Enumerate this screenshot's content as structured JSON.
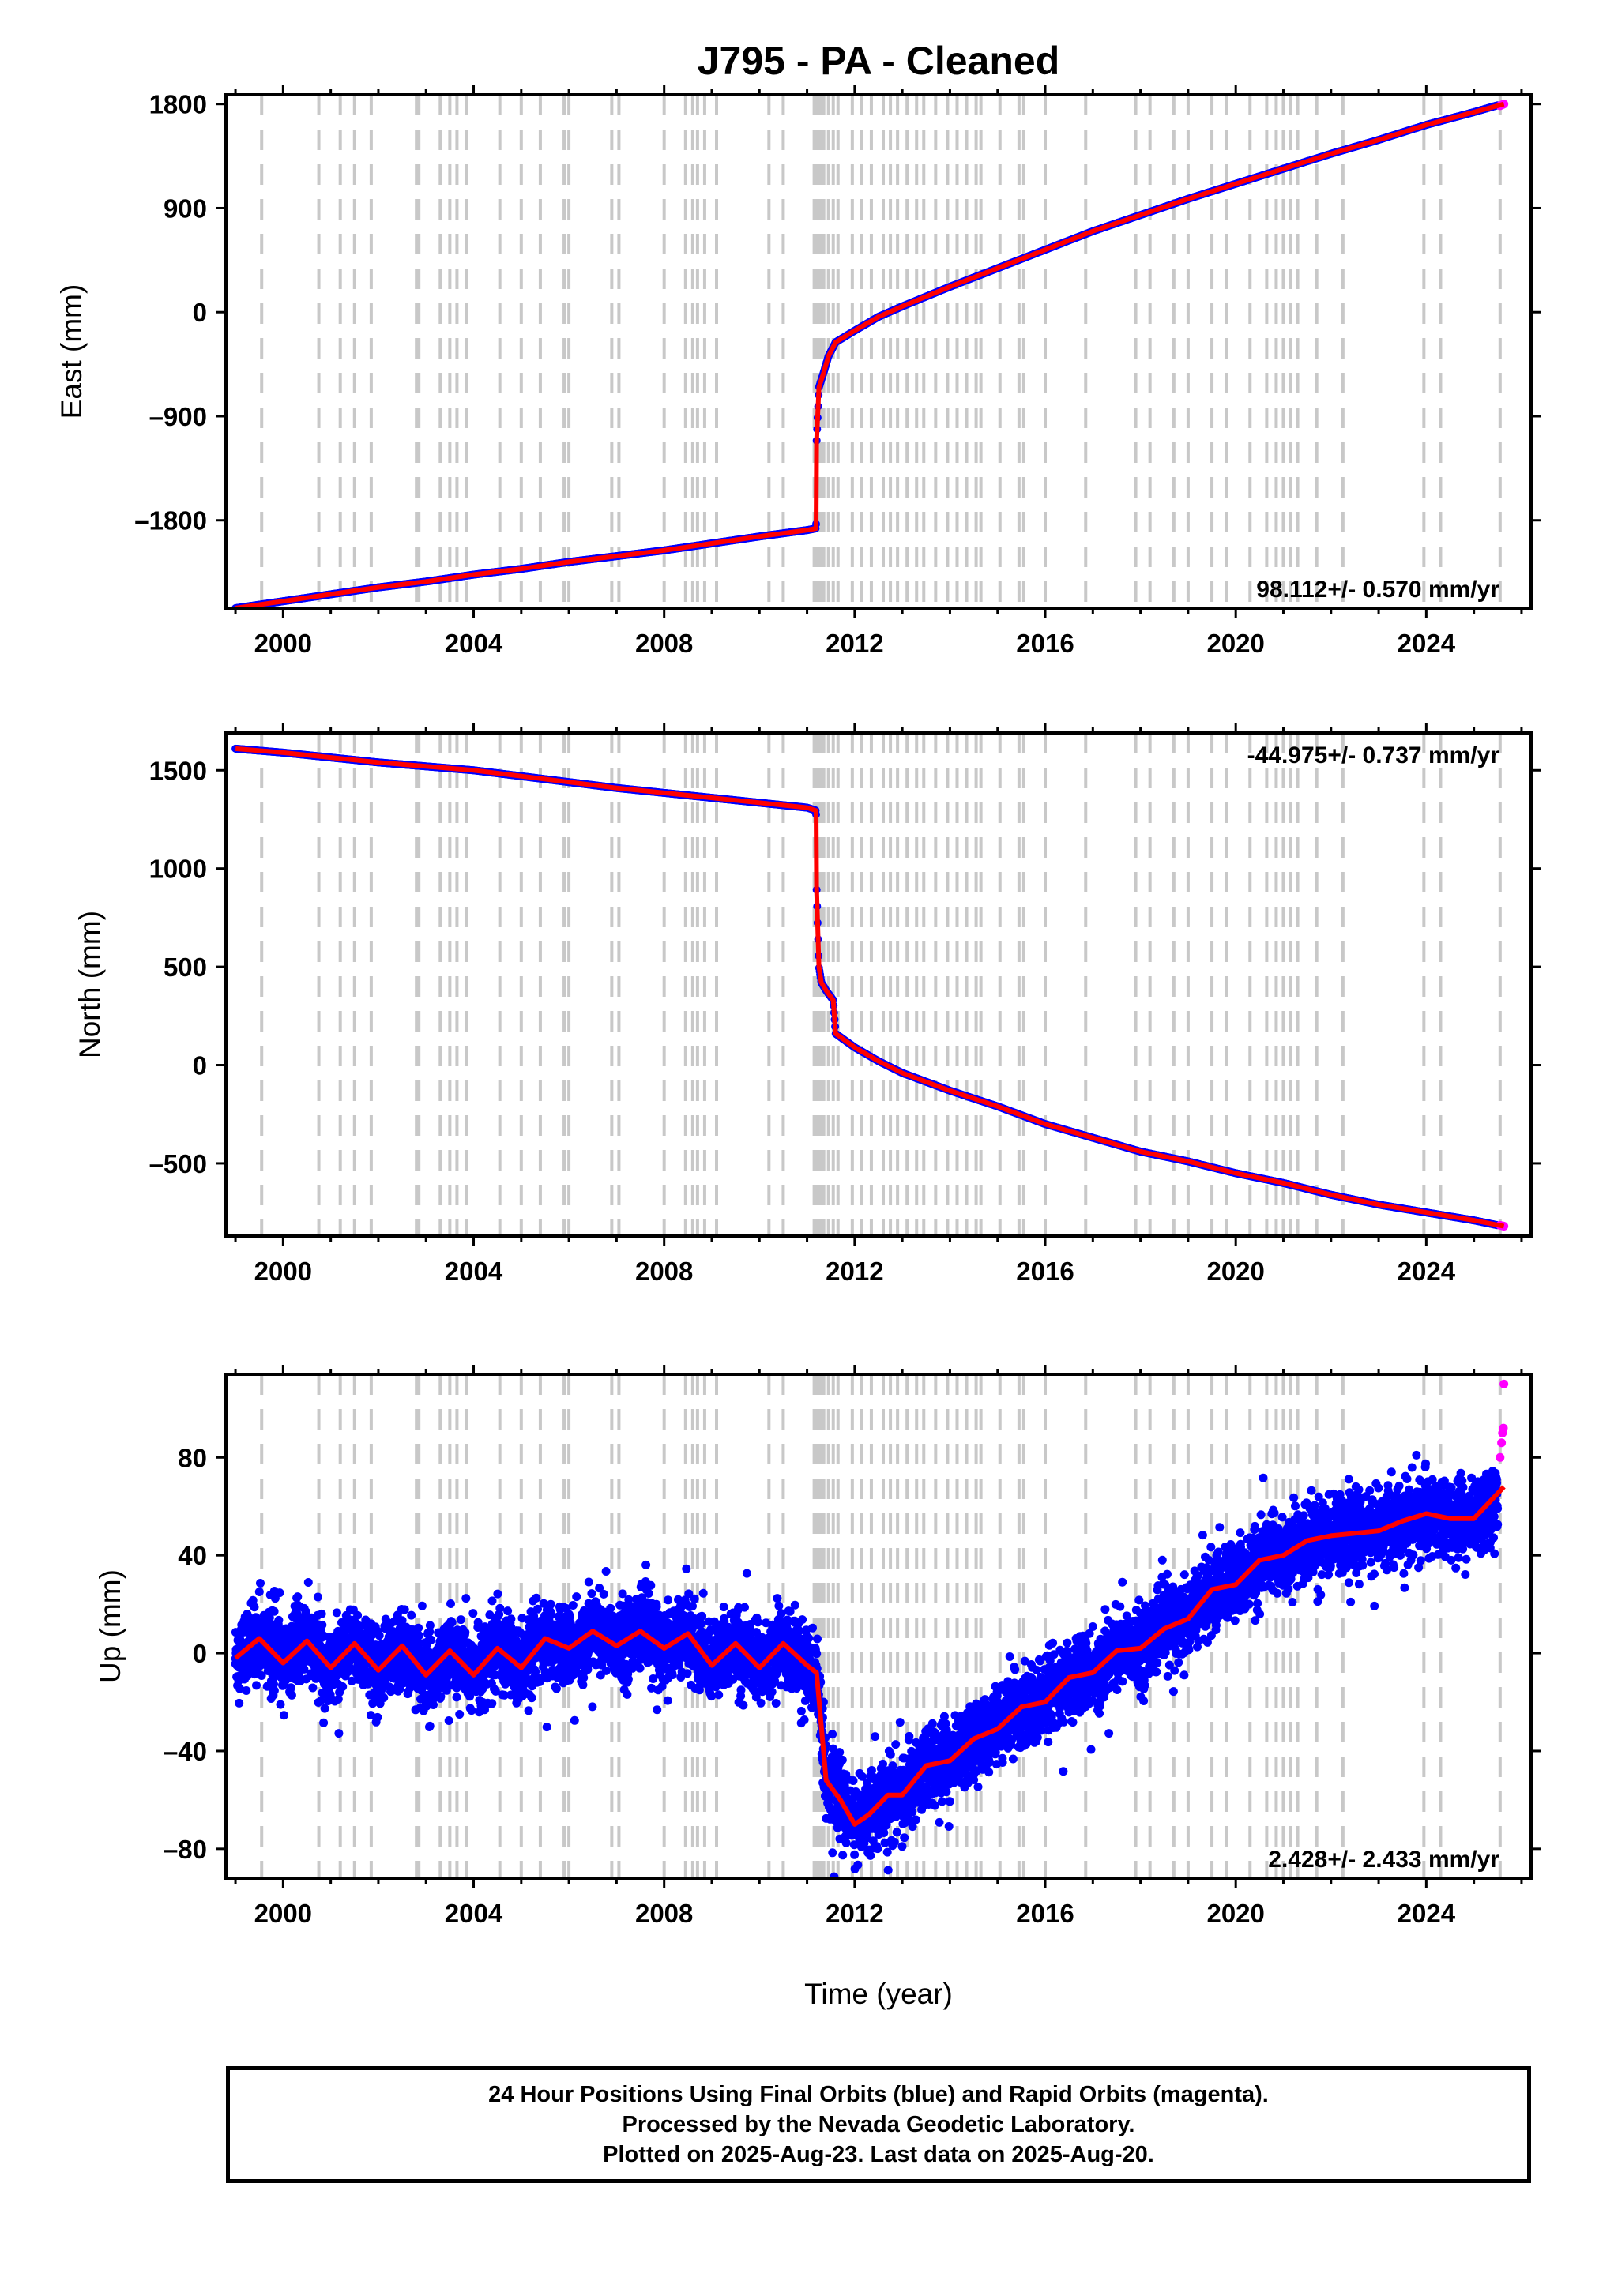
{
  "figure": {
    "title": "J795  - PA - Cleaned",
    "xlabel": "Time (year)",
    "footer": [
      "24 Hour Positions Using Final Orbits (blue) and Rapid Orbits (magenta).",
      "Processed by the Nevada Geodetic Laboratory.",
      "Plotted on 2025-Aug-23. Last data on 2025-Aug-20."
    ],
    "colors": {
      "final_orbits": "#0000ff",
      "rapid_orbits": "#ff00ff",
      "model": "#ff0000",
      "equipment_change": "#c8c8c8",
      "frame": "#000000"
    }
  },
  "chart_data": [
    {
      "type": "scatter",
      "panel": "east",
      "ylabel": "East (mm)",
      "xlim": [
        1998.8,
        2026.2
      ],
      "ylim": [
        -2560,
        1880
      ],
      "xticks": [
        2000,
        2004,
        2008,
        2012,
        2016,
        2020,
        2024
      ],
      "yticks": [
        1800,
        900,
        0,
        -900,
        -1800
      ],
      "ytick_labels": [
        "1800",
        "900",
        "0",
        "–900",
        "–1800"
      ],
      "rate_label": "98.112+/- 0.570 mm/yr",
      "series": [
        {
          "name": "Final Orbits (blue)",
          "color": "#0000ff",
          "x": [
            1999.0,
            2000.0,
            2001.0,
            2002.0,
            2003.0,
            2004.0,
            2005.0,
            2006.0,
            2007.0,
            2008.0,
            2009.0,
            2010.0,
            2011.0,
            2011.19,
            2011.2,
            2011.25,
            2011.35,
            2011.45,
            2011.6,
            2012.0,
            2012.5,
            2013.0,
            2014.0,
            2015.0,
            2016.0,
            2017.0,
            2018.0,
            2019.0,
            2020.0,
            2021.0,
            2022.0,
            2023.0,
            2024.0,
            2025.0,
            2025.5
          ],
          "y": [
            -2560,
            -2500,
            -2440,
            -2380,
            -2330,
            -2270,
            -2220,
            -2160,
            -2110,
            -2060,
            -2000,
            -1940,
            -1885,
            -1870,
            -1120,
            -650,
            -520,
            -380,
            -260,
            -160,
            -40,
            50,
            220,
            380,
            540,
            700,
            840,
            980,
            1110,
            1240,
            1370,
            1490,
            1620,
            1730,
            1790
          ]
        },
        {
          "name": "Rapid Orbits (magenta)",
          "color": "#ff00ff",
          "x": [
            2025.55,
            2025.6,
            2025.63
          ],
          "y": [
            1785,
            1795,
            1800
          ]
        }
      ],
      "model": {
        "color": "#ff0000",
        "x": [
          1999.0,
          2000.0,
          2001.0,
          2002.0,
          2003.0,
          2004.0,
          2005.0,
          2006.0,
          2007.0,
          2008.0,
          2009.0,
          2010.0,
          2011.0,
          2011.19,
          2011.2,
          2011.25,
          2011.35,
          2011.45,
          2011.6,
          2012.0,
          2012.5,
          2013.0,
          2014.0,
          2015.0,
          2016.0,
          2017.0,
          2018.0,
          2019.0,
          2020.0,
          2021.0,
          2022.0,
          2023.0,
          2024.0,
          2025.0,
          2025.63
        ],
        "y": [
          -2560,
          -2500,
          -2440,
          -2380,
          -2330,
          -2270,
          -2220,
          -2160,
          -2110,
          -2060,
          -2000,
          -1940,
          -1885,
          -1870,
          -1120,
          -650,
          -520,
          -380,
          -260,
          -160,
          -40,
          50,
          220,
          380,
          540,
          700,
          840,
          980,
          1110,
          1240,
          1370,
          1490,
          1620,
          1730,
          1800
        ]
      }
    },
    {
      "type": "scatter",
      "panel": "north",
      "ylabel": "North (mm)",
      "xlim": [
        1998.8,
        2026.2
      ],
      "ylim": [
        -870,
        1690
      ],
      "xticks": [
        2000,
        2004,
        2008,
        2012,
        2016,
        2020,
        2024
      ],
      "yticks": [
        1500,
        1000,
        500,
        0,
        -500
      ],
      "ytick_labels": [
        "1500",
        "1000",
        "500",
        "0",
        "–500"
      ],
      "rate_label": "-44.975+/- 0.737 mm/yr",
      "series": [
        {
          "name": "Final Orbits (blue)",
          "color": "#0000ff",
          "x": [
            1999.0,
            2000.0,
            2001.0,
            2002.0,
            2003.0,
            2004.0,
            2005.0,
            2006.0,
            2007.0,
            2008.0,
            2009.0,
            2010.0,
            2011.0,
            2011.19,
            2011.2,
            2011.25,
            2011.3,
            2011.4,
            2011.55,
            2011.6,
            2012.0,
            2012.5,
            2013.0,
            2014.0,
            2015.0,
            2016.0,
            2017.0,
            2018.0,
            2019.0,
            2020.0,
            2021.0,
            2022.0,
            2023.0,
            2024.0,
            2025.0,
            2025.5
          ],
          "y": [
            1610,
            1590,
            1565,
            1540,
            1520,
            1500,
            1470,
            1440,
            1410,
            1385,
            1360,
            1335,
            1310,
            1295,
            900,
            500,
            420,
            380,
            330,
            160,
            90,
            20,
            -40,
            -130,
            -210,
            -300,
            -370,
            -440,
            -490,
            -550,
            -600,
            -660,
            -710,
            -750,
            -790,
            -815
          ]
        },
        {
          "name": "Rapid Orbits (magenta)",
          "color": "#ff00ff",
          "x": [
            2025.55,
            2025.6,
            2025.63
          ],
          "y": [
            -815,
            -818,
            -820
          ]
        }
      ],
      "model": {
        "color": "#ff0000",
        "x": [
          1999.0,
          2000.0,
          2001.0,
          2002.0,
          2003.0,
          2004.0,
          2005.0,
          2006.0,
          2007.0,
          2008.0,
          2009.0,
          2010.0,
          2011.0,
          2011.19,
          2011.2,
          2011.25,
          2011.3,
          2011.4,
          2011.55,
          2011.6,
          2012.0,
          2012.5,
          2013.0,
          2014.0,
          2015.0,
          2016.0,
          2017.0,
          2018.0,
          2019.0,
          2020.0,
          2021.0,
          2022.0,
          2023.0,
          2024.0,
          2025.0,
          2025.63
        ],
        "y": [
          1610,
          1590,
          1565,
          1540,
          1520,
          1500,
          1470,
          1440,
          1410,
          1385,
          1360,
          1335,
          1310,
          1295,
          900,
          500,
          420,
          380,
          330,
          160,
          90,
          20,
          -40,
          -130,
          -210,
          -300,
          -370,
          -440,
          -490,
          -550,
          -600,
          -660,
          -710,
          -750,
          -790,
          -820
        ]
      }
    },
    {
      "type": "scatter",
      "panel": "up",
      "ylabel": "Up (mm)",
      "xlim": [
        1998.8,
        2026.2
      ],
      "ylim": [
        -92,
        114
      ],
      "xticks": [
        2000,
        2004,
        2008,
        2012,
        2016,
        2020,
        2024
      ],
      "yticks": [
        80,
        40,
        0,
        -40,
        -80
      ],
      "ytick_labels": [
        "80",
        "40",
        "0",
        "–40",
        "–80"
      ],
      "rate_label": "2.428+/- 2.433 mm/yr",
      "series": [
        {
          "name": "Final Orbits (blue)",
          "color": "#0000ff",
          "x": [
            1999.0,
            1999.5,
            2000.0,
            2000.5,
            2001.0,
            2001.5,
            2002.0,
            2002.5,
            2003.0,
            2003.5,
            2004.0,
            2004.5,
            2005.0,
            2005.5,
            2006.0,
            2006.5,
            2007.0,
            2007.5,
            2008.0,
            2008.5,
            2009.0,
            2009.5,
            2010.0,
            2010.5,
            2011.0,
            2011.2,
            2011.4,
            2011.7,
            2012.0,
            2012.3,
            2012.7,
            2013.0,
            2013.5,
            2014.0,
            2014.5,
            2015.0,
            2015.5,
            2016.0,
            2016.5,
            2017.0,
            2017.5,
            2018.0,
            2018.5,
            2019.0,
            2019.5,
            2020.0,
            2020.5,
            2021.0,
            2021.5,
            2022.0,
            2022.5,
            2023.0,
            2023.5,
            2024.0,
            2024.5,
            2025.0,
            2025.5
          ],
          "y": [
            -2,
            6,
            -4,
            5,
            -6,
            4,
            -7,
            3,
            -9,
            1,
            -9,
            2,
            -6,
            6,
            2,
            9,
            3,
            9,
            2,
            8,
            -5,
            4,
            -6,
            4,
            -5,
            -8,
            -52,
            -60,
            -70,
            -66,
            -58,
            -58,
            -46,
            -44,
            -35,
            -31,
            -22,
            -20,
            -10,
            -8,
            1,
            2,
            10,
            14,
            26,
            28,
            38,
            40,
            46,
            48,
            49,
            50,
            54,
            57,
            55,
            55,
            62
          ]
        },
        {
          "name": "Rapid Orbits (magenta)",
          "color": "#ff00ff",
          "x": [
            2025.55,
            2025.58,
            2025.6,
            2025.62,
            2025.63
          ],
          "y": [
            80,
            86,
            90,
            92,
            110
          ]
        }
      ],
      "model": {
        "color": "#ff0000",
        "x": [
          1999.0,
          1999.5,
          2000.0,
          2000.5,
          2001.0,
          2001.5,
          2002.0,
          2002.5,
          2003.0,
          2003.5,
          2004.0,
          2004.5,
          2005.0,
          2005.5,
          2006.0,
          2006.5,
          2007.0,
          2007.5,
          2008.0,
          2008.5,
          2009.0,
          2009.5,
          2010.0,
          2010.5,
          2011.0,
          2011.2,
          2011.4,
          2011.7,
          2012.0,
          2012.3,
          2012.7,
          2013.0,
          2013.5,
          2014.0,
          2014.5,
          2015.0,
          2015.5,
          2016.0,
          2016.5,
          2017.0,
          2017.5,
          2018.0,
          2018.5,
          2019.0,
          2019.5,
          2020.0,
          2020.5,
          2021.0,
          2021.5,
          2022.0,
          2022.5,
          2023.0,
          2023.5,
          2024.0,
          2024.5,
          2025.0,
          2025.63
        ],
        "y": [
          -2,
          6,
          -4,
          5,
          -6,
          4,
          -7,
          3,
          -9,
          1,
          -9,
          2,
          -6,
          6,
          2,
          9,
          3,
          9,
          2,
          8,
          -5,
          4,
          -6,
          4,
          -5,
          -8,
          -52,
          -60,
          -70,
          -66,
          -58,
          -58,
          -46,
          -44,
          -35,
          -31,
          -22,
          -20,
          -10,
          -8,
          1,
          2,
          10,
          14,
          26,
          28,
          38,
          40,
          46,
          48,
          49,
          50,
          54,
          57,
          55,
          55,
          68
        ]
      }
    }
  ],
  "equipment_changes": [
    1999.55,
    2000.75,
    2001.2,
    2001.5,
    2001.85,
    2002.8,
    2002.85,
    2003.3,
    2003.5,
    2003.65,
    2003.85,
    2004.55,
    2005.0,
    2005.4,
    2005.9,
    2006.0,
    2006.9,
    2007.05,
    2008.0,
    2008.45,
    2008.6,
    2008.7,
    2008.85,
    2009.1,
    2010.2,
    2010.5,
    2011.15,
    2011.2,
    2011.25,
    2011.3,
    2011.35,
    2011.45,
    2011.55,
    2011.65,
    2011.95,
    2012.15,
    2012.35,
    2012.6,
    2012.75,
    2012.9,
    2013.1,
    2013.3,
    2013.45,
    2013.7,
    2013.95,
    2014.15,
    2014.35,
    2014.55,
    2014.65,
    2015.05,
    2015.45,
    2015.55,
    2016.0,
    2016.85,
    2017.9,
    2018.2,
    2018.7,
    2019.0,
    2019.5,
    2019.8,
    2020.3,
    2020.65,
    2020.85,
    2021.0,
    2021.15,
    2021.3,
    2021.7,
    2022.25,
    2023.95,
    2024.3,
    2025.55
  ]
}
